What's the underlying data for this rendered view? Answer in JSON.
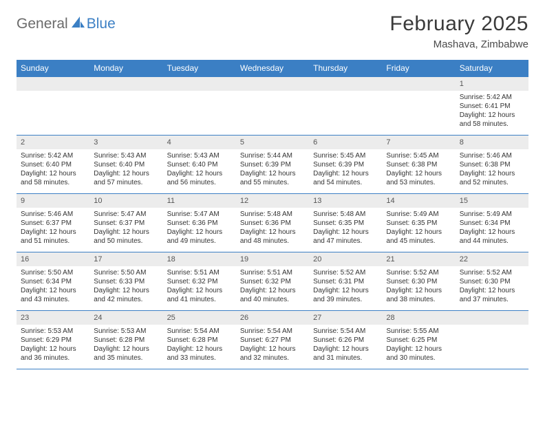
{
  "brand": {
    "part1": "General",
    "part2": "Blue"
  },
  "title": "February 2025",
  "subtitle": "Mashava, Zimbabwe",
  "colors": {
    "header_bg": "#3b7fc4",
    "header_text": "#ffffff",
    "line": "#3b7fc4",
    "daynum_bg": "#ececec",
    "text": "#333333"
  },
  "weekdays": [
    "Sunday",
    "Monday",
    "Tuesday",
    "Wednesday",
    "Thursday",
    "Friday",
    "Saturday"
  ],
  "weeks": [
    [
      null,
      null,
      null,
      null,
      null,
      null,
      {
        "n": "1",
        "sr": "5:42 AM",
        "ss": "6:41 PM",
        "dl": "12 hours and 58 minutes."
      }
    ],
    [
      {
        "n": "2",
        "sr": "5:42 AM",
        "ss": "6:40 PM",
        "dl": "12 hours and 58 minutes."
      },
      {
        "n": "3",
        "sr": "5:43 AM",
        "ss": "6:40 PM",
        "dl": "12 hours and 57 minutes."
      },
      {
        "n": "4",
        "sr": "5:43 AM",
        "ss": "6:40 PM",
        "dl": "12 hours and 56 minutes."
      },
      {
        "n": "5",
        "sr": "5:44 AM",
        "ss": "6:39 PM",
        "dl": "12 hours and 55 minutes."
      },
      {
        "n": "6",
        "sr": "5:45 AM",
        "ss": "6:39 PM",
        "dl": "12 hours and 54 minutes."
      },
      {
        "n": "7",
        "sr": "5:45 AM",
        "ss": "6:38 PM",
        "dl": "12 hours and 53 minutes."
      },
      {
        "n": "8",
        "sr": "5:46 AM",
        "ss": "6:38 PM",
        "dl": "12 hours and 52 minutes."
      }
    ],
    [
      {
        "n": "9",
        "sr": "5:46 AM",
        "ss": "6:37 PM",
        "dl": "12 hours and 51 minutes."
      },
      {
        "n": "10",
        "sr": "5:47 AM",
        "ss": "6:37 PM",
        "dl": "12 hours and 50 minutes."
      },
      {
        "n": "11",
        "sr": "5:47 AM",
        "ss": "6:36 PM",
        "dl": "12 hours and 49 minutes."
      },
      {
        "n": "12",
        "sr": "5:48 AM",
        "ss": "6:36 PM",
        "dl": "12 hours and 48 minutes."
      },
      {
        "n": "13",
        "sr": "5:48 AM",
        "ss": "6:35 PM",
        "dl": "12 hours and 47 minutes."
      },
      {
        "n": "14",
        "sr": "5:49 AM",
        "ss": "6:35 PM",
        "dl": "12 hours and 45 minutes."
      },
      {
        "n": "15",
        "sr": "5:49 AM",
        "ss": "6:34 PM",
        "dl": "12 hours and 44 minutes."
      }
    ],
    [
      {
        "n": "16",
        "sr": "5:50 AM",
        "ss": "6:34 PM",
        "dl": "12 hours and 43 minutes."
      },
      {
        "n": "17",
        "sr": "5:50 AM",
        "ss": "6:33 PM",
        "dl": "12 hours and 42 minutes."
      },
      {
        "n": "18",
        "sr": "5:51 AM",
        "ss": "6:32 PM",
        "dl": "12 hours and 41 minutes."
      },
      {
        "n": "19",
        "sr": "5:51 AM",
        "ss": "6:32 PM",
        "dl": "12 hours and 40 minutes."
      },
      {
        "n": "20",
        "sr": "5:52 AM",
        "ss": "6:31 PM",
        "dl": "12 hours and 39 minutes."
      },
      {
        "n": "21",
        "sr": "5:52 AM",
        "ss": "6:30 PM",
        "dl": "12 hours and 38 minutes."
      },
      {
        "n": "22",
        "sr": "5:52 AM",
        "ss": "6:30 PM",
        "dl": "12 hours and 37 minutes."
      }
    ],
    [
      {
        "n": "23",
        "sr": "5:53 AM",
        "ss": "6:29 PM",
        "dl": "12 hours and 36 minutes."
      },
      {
        "n": "24",
        "sr": "5:53 AM",
        "ss": "6:28 PM",
        "dl": "12 hours and 35 minutes."
      },
      {
        "n": "25",
        "sr": "5:54 AM",
        "ss": "6:28 PM",
        "dl": "12 hours and 33 minutes."
      },
      {
        "n": "26",
        "sr": "5:54 AM",
        "ss": "6:27 PM",
        "dl": "12 hours and 32 minutes."
      },
      {
        "n": "27",
        "sr": "5:54 AM",
        "ss": "6:26 PM",
        "dl": "12 hours and 31 minutes."
      },
      {
        "n": "28",
        "sr": "5:55 AM",
        "ss": "6:25 PM",
        "dl": "12 hours and 30 minutes."
      },
      null
    ]
  ],
  "labels": {
    "sunrise": "Sunrise:",
    "sunset": "Sunset:",
    "daylight": "Daylight:"
  }
}
